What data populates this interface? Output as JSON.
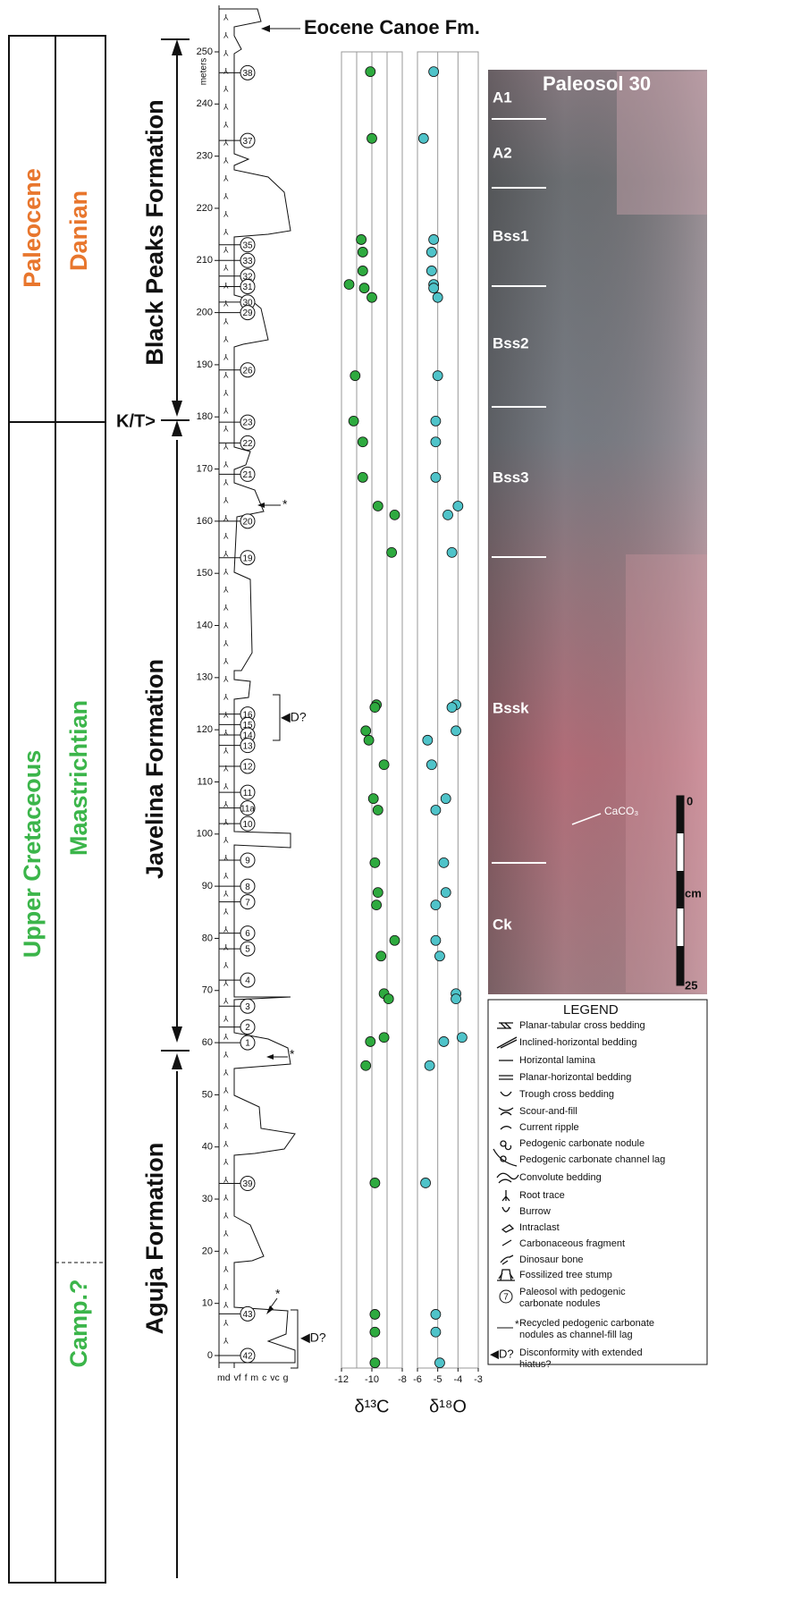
{
  "stages": {
    "epochs": [
      "Paleocene",
      "Upper Cretaceous"
    ],
    "ages": [
      "Danian",
      "Maastrichtian",
      "Camp.?"
    ]
  },
  "formations": {
    "top": "Eocene Canoe Fm.",
    "names": [
      "Black Peaks Formation",
      "Javelina Formation",
      "Aguja Formation"
    ],
    "boundary": "K/T>"
  },
  "column": {
    "y_label": "meters",
    "ylim": [
      0,
      250
    ],
    "yticks": [
      0,
      10,
      20,
      30,
      40,
      50,
      60,
      70,
      80,
      90,
      100,
      110,
      120,
      130,
      140,
      150,
      160,
      170,
      180,
      190,
      200,
      210,
      220,
      230,
      240,
      250
    ],
    "grain_size": "md vf f m c vc g",
    "paleosols": [
      {
        "label": "38",
        "meter": 246
      },
      {
        "label": "37",
        "meter": 233
      },
      {
        "label": "35",
        "meter": 213
      },
      {
        "label": "33",
        "meter": 210
      },
      {
        "label": "32",
        "meter": 207
      },
      {
        "label": "31",
        "meter": 205
      },
      {
        "label": "30",
        "meter": 202
      },
      {
        "label": "29",
        "meter": 200
      },
      {
        "label": "26",
        "meter": 189
      },
      {
        "label": "23",
        "meter": 179
      },
      {
        "label": "22",
        "meter": 175
      },
      {
        "label": "21",
        "meter": 169
      },
      {
        "label": "20",
        "meter": 160
      },
      {
        "label": "19",
        "meter": 153
      },
      {
        "label": "16",
        "meter": 123
      },
      {
        "label": "15",
        "meter": 121
      },
      {
        "label": "14",
        "meter": 119
      },
      {
        "label": "13",
        "meter": 117
      },
      {
        "label": "12",
        "meter": 113
      },
      {
        "label": "11",
        "meter": 108
      },
      {
        "label": "11a",
        "meter": 105
      },
      {
        "label": "10",
        "meter": 102
      },
      {
        "label": "9",
        "meter": 95
      },
      {
        "label": "8",
        "meter": 90
      },
      {
        "label": "7",
        "meter": 87
      },
      {
        "label": "6",
        "meter": 81
      },
      {
        "label": "5",
        "meter": 78
      },
      {
        "label": "4",
        "meter": 72
      },
      {
        "label": "3",
        "meter": 67
      },
      {
        "label": "2",
        "meter": 63
      },
      {
        "label": "1",
        "meter": 60
      },
      {
        "label": "39",
        "meter": 33
      },
      {
        "label": "43",
        "meter": 8
      },
      {
        "label": "42",
        "meter": 0
      }
    ],
    "annotations": [
      "*",
      "*",
      "*",
      "◀D?",
      "◀D?"
    ]
  },
  "chart_data": [
    {
      "type": "scatter",
      "x_label": "δ¹³C",
      "color": "#2eaa3f",
      "xlim": [
        -12,
        -8
      ],
      "xticks": [
        -12,
        -10,
        -8
      ],
      "ylim": [
        0,
        250
      ],
      "x": [
        -10.1,
        -10.0,
        -10.7,
        -10.6,
        -10.6,
        -11.5,
        -10.5,
        -10.0,
        -11.1,
        -11.2,
        -10.6,
        -10.6,
        -9.6,
        -8.5,
        -8.7,
        -9.7,
        -9.8,
        -10.4,
        -10.2,
        -9.2,
        -9.9,
        -9.6,
        -9.8,
        -9.6,
        -9.7,
        -8.5,
        -9.4,
        -9.2,
        -8.9,
        -9.2,
        -10.1,
        -10.4,
        -9.8,
        -9.8,
        -9.8,
        -9.8
      ],
      "y": [
        246.2,
        233.4,
        214.0,
        211.6,
        208.0,
        205.4,
        204.7,
        202.9,
        187.9,
        179.2,
        175.2,
        168.4,
        162.9,
        161.2,
        154.0,
        124.8,
        124.3,
        119.8,
        118.0,
        113.3,
        106.8,
        104.6,
        94.5,
        88.8,
        86.4,
        79.6,
        76.6,
        69.4,
        68.4,
        61.0,
        60.2,
        55.6,
        33.1,
        7.9,
        4.5,
        -1.4
      ]
    },
    {
      "type": "scatter",
      "x_label": "δ¹⁸O",
      "color": "#4fc3c9",
      "xlim": [
        -6,
        -3
      ],
      "xticks": [
        -6,
        -5,
        -4,
        -3
      ],
      "ylim": [
        0,
        250
      ],
      "x": [
        -5.2,
        -5.7,
        -5.2,
        -5.3,
        -5.3,
        -5.2,
        -5.2,
        -5.0,
        -5.0,
        -5.1,
        -5.1,
        -5.1,
        -4.0,
        -4.5,
        -4.3,
        -4.1,
        -4.3,
        -4.1,
        -5.5,
        -5.3,
        -4.6,
        -5.1,
        -4.7,
        -4.6,
        -5.1,
        -5.1,
        -4.9,
        -4.1,
        -4.1,
        -3.8,
        -4.7,
        -5.4,
        -5.6,
        -5.1,
        -5.1,
        -4.9
      ],
      "y": [
        246.2,
        233.4,
        214.0,
        211.6,
        208.0,
        205.4,
        204.7,
        202.9,
        187.9,
        179.2,
        175.2,
        168.4,
        162.9,
        161.2,
        154.0,
        124.8,
        124.3,
        119.8,
        118.0,
        113.3,
        106.8,
        104.6,
        94.5,
        88.8,
        86.4,
        79.6,
        76.6,
        69.4,
        68.4,
        61.0,
        60.2,
        55.6,
        33.1,
        7.9,
        4.5,
        -1.4
      ]
    }
  ],
  "photo": {
    "title": "Paleosol 30",
    "horizons": [
      "A1",
      "A2",
      "Bss1",
      "Bss2",
      "Bss3",
      "Bssk",
      "Ck"
    ],
    "nodule_label": "CaCO₃",
    "scale": [
      "0",
      "cm",
      "25"
    ]
  },
  "legend": {
    "title": "LEGEND",
    "paleosol_icon": "7",
    "items": [
      [
        "Planar-tabular cross bedding"
      ],
      [
        "Inclined-horizontal bedding"
      ],
      [
        "Horizontal lamina"
      ],
      [
        "Planar-horizontal bedding"
      ],
      [
        "Trough cross bedding"
      ],
      [
        "Scour-and-fill"
      ],
      [
        "Current ripple"
      ],
      [
        "Pedogenic carbonate nodule"
      ],
      [
        "Pedogenic carbonate channel lag"
      ],
      [
        "Convolute bedding"
      ],
      [
        "Root trace"
      ],
      [
        "Burrow"
      ],
      [
        "Intraclast"
      ],
      [
        "Carbonaceous fragment"
      ],
      [
        "Dinosaur bone"
      ],
      [
        "Fossilized tree stump"
      ],
      [
        "Paleosol with pedogenic",
        "carbonate nodules"
      ],
      [
        "Recycled pedogenic carbonate",
        "nodules as channel-fill lag"
      ],
      [
        "Disconformity with extended",
        "hiatus?"
      ]
    ]
  }
}
